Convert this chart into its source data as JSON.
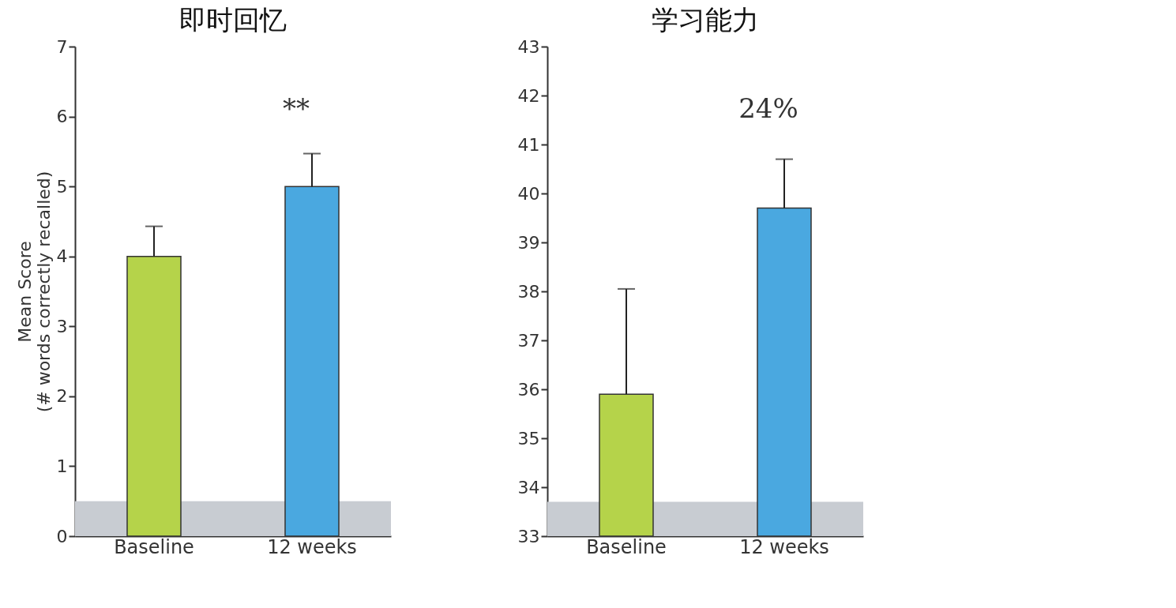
{
  "chart_data": [
    {
      "type": "bar",
      "title": "即时回忆",
      "ylabel": "Mean Score\n(# words correctly recalled)",
      "categories": [
        "Baseline",
        "12 weeks"
      ],
      "values": [
        4.0,
        5.0
      ],
      "colors": [
        "#b5d34a",
        "#4aa8e0"
      ],
      "errors": [
        0.43,
        0.47
      ],
      "ylim": [
        0,
        7
      ],
      "yticks": [
        0,
        1,
        2,
        3,
        4,
        5,
        6,
        7
      ],
      "grid": false,
      "bands": [
        {
          "axis": "y",
          "from": 0,
          "to": 0.5,
          "color": "#c8ccd2"
        }
      ],
      "annotations": [
        "**"
      ]
    },
    {
      "type": "bar",
      "title": "学习能力",
      "categories": [
        "Baseline",
        "12 weeks"
      ],
      "values": [
        35.9,
        39.7
      ],
      "colors": [
        "#b5d34a",
        "#4aa8e0"
      ],
      "errors": [
        2.15,
        1.0
      ],
      "ylim": [
        33,
        43
      ],
      "yticks": [
        33,
        34,
        35,
        36,
        37,
        38,
        39,
        40,
        41,
        42,
        43
      ],
      "grid": false,
      "bands": [
        {
          "axis": "y",
          "from": 33,
          "to": 33.7,
          "color": "#c8ccd2"
        }
      ],
      "annotations": [
        "24%"
      ]
    }
  ]
}
